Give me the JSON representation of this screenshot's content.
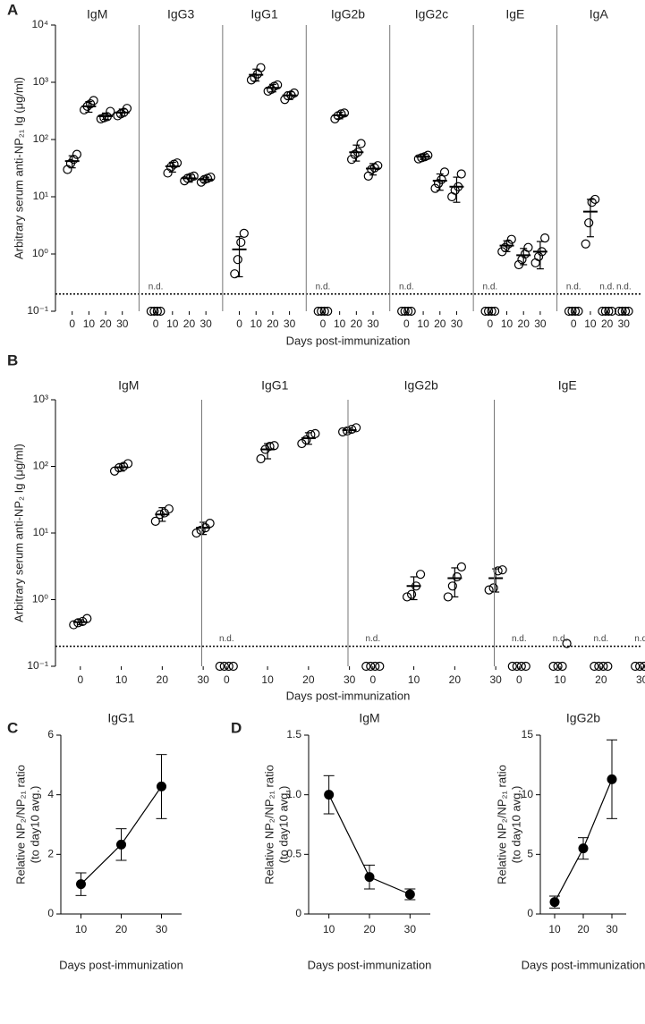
{
  "chart_data": [
    {
      "type": "dot",
      "panel": "A",
      "ylabel": "Arbitrary serum anti-NP₂₁ Ig (μg/ml)",
      "xlabel": "Days post-immunization",
      "log_y": true,
      "ylim": [
        0.1,
        10000
      ],
      "yticks": [
        {
          "value": 0.1,
          "label": "10⁻¹"
        },
        {
          "value": 1,
          "label": "10⁰"
        },
        {
          "value": 10,
          "label": "10¹"
        },
        {
          "value": 100,
          "label": "10²"
        },
        {
          "value": 1000,
          "label": "10³"
        },
        {
          "value": 10000,
          "label": "10⁴"
        }
      ],
      "categories": [
        "0",
        "10",
        "20",
        "30"
      ],
      "detection_limit": 0.2,
      "color": "#000000",
      "groups": [
        {
          "name": "IgM",
          "points": [
            [
              30,
              38,
              45,
              55
            ],
            [
              330,
              380,
              420,
              480
            ],
            [
              230,
              240,
              250,
              310
            ],
            [
              260,
              280,
              300,
              350
            ]
          ],
          "mean": [
            42,
            380,
            255,
            295
          ],
          "lower": [
            32,
            300,
            225,
            255
          ],
          "upper": [
            52,
            460,
            290,
            340
          ],
          "nd": [
            null,
            null,
            null,
            null
          ]
        },
        {
          "name": "IgG3",
          "points": [
            [
              0.1,
              0.1,
              0.1,
              0.1
            ],
            [
              26,
              33,
              37,
              39
            ],
            [
              19,
              21,
              22,
              23
            ],
            [
              18,
              20,
              21,
              22
            ]
          ],
          "mean": [
            null,
            34,
            21,
            20
          ],
          "lower": [
            null,
            27,
            18,
            18
          ],
          "upper": [
            null,
            40,
            24,
            22
          ],
          "nd": [
            "n.d.",
            null,
            null,
            null
          ]
        },
        {
          "name": "IgG1",
          "points": [
            [
              0.45,
              0.8,
              1.6,
              2.3
            ],
            [
              1100,
              1200,
              1400,
              1800
            ],
            [
              700,
              750,
              850,
              900
            ],
            [
              500,
              580,
              600,
              650
            ]
          ],
          "mean": [
            1.2,
            1350,
            800,
            590
          ],
          "lower": [
            0.4,
            1050,
            680,
            500
          ],
          "upper": [
            2.0,
            1700,
            920,
            680
          ],
          "nd": [
            null,
            null,
            null,
            null
          ]
        },
        {
          "name": "IgG2b",
          "points": [
            [
              0.1,
              0.1,
              0.1,
              0.1
            ],
            [
              230,
              260,
              280,
              290
            ],
            [
              45,
              55,
              60,
              85
            ],
            [
              23,
              30,
              32,
              35
            ]
          ],
          "mean": [
            null,
            265,
            60,
            31
          ],
          "lower": [
            null,
            230,
            42,
            24
          ],
          "upper": [
            null,
            300,
            80,
            38
          ],
          "nd": [
            "n.d.",
            null,
            null,
            null
          ]
        },
        {
          "name": "IgG2c",
          "points": [
            [
              0.1,
              0.1,
              0.1,
              0.1
            ],
            [
              46,
              48,
              50,
              53
            ],
            [
              14,
              17,
              20,
              27
            ],
            [
              10,
              13,
              15,
              25
            ]
          ],
          "mean": [
            null,
            50,
            19,
            15
          ],
          "lower": [
            null,
            45,
            13,
            8
          ],
          "upper": [
            null,
            55,
            25,
            22
          ],
          "nd": [
            "n.d.",
            null,
            null,
            null
          ]
        },
        {
          "name": "IgE",
          "points": [
            [
              0.1,
              0.1,
              0.1,
              0.1
            ],
            [
              1.1,
              1.3,
              1.5,
              1.8
            ],
            [
              0.65,
              0.8,
              1.0,
              1.3
            ],
            [
              0.7,
              0.9,
              1.1,
              1.9
            ]
          ],
          "mean": [
            null,
            1.4,
            0.95,
            1.1
          ],
          "lower": [
            null,
            1.1,
            0.65,
            0.55
          ],
          "upper": [
            null,
            1.7,
            1.25,
            1.65
          ],
          "nd": [
            "n.d.",
            null,
            null,
            null
          ]
        },
        {
          "name": "IgA",
          "points": [
            [
              0.1,
              0.1,
              0.1,
              0.1
            ],
            [
              1.5,
              3.5,
              8,
              9
            ],
            [
              0.1,
              0.1,
              0.1,
              0.1
            ],
            [
              0.1,
              0.1,
              0.1,
              0.1
            ]
          ],
          "mean": [
            null,
            5.5,
            null,
            null
          ],
          "lower": [
            null,
            2.0,
            null,
            null
          ],
          "upper": [
            null,
            9.0,
            null,
            null
          ],
          "nd": [
            "n.d.",
            null,
            "n.d.",
            "n.d."
          ]
        }
      ]
    },
    {
      "type": "dot",
      "panel": "B",
      "ylabel": "Arbitrary serum anti-NP₂ Ig (μg/ml)",
      "xlabel": "Days post-immunization",
      "log_y": true,
      "ylim": [
        0.1,
        1000
      ],
      "yticks": [
        {
          "value": 0.1,
          "label": "10⁻¹"
        },
        {
          "value": 1,
          "label": "10⁰"
        },
        {
          "value": 10,
          "label": "10¹"
        },
        {
          "value": 100,
          "label": "10²"
        },
        {
          "value": 1000,
          "label": "10³"
        }
      ],
      "categories": [
        "0",
        "10",
        "20",
        "30"
      ],
      "detection_limit": 0.2,
      "color": "#000000",
      "groups": [
        {
          "name": "IgM",
          "points": [
            [
              0.42,
              0.45,
              0.47,
              0.52
            ],
            [
              85,
              95,
              100,
              110
            ],
            [
              15,
              19,
              20,
              23
            ],
            [
              10,
              11,
              12,
              14
            ]
          ],
          "mean": [
            0.46,
            97,
            19,
            12
          ],
          "lower": [
            0.42,
            85,
            15,
            9.5
          ],
          "upper": [
            0.5,
            110,
            24,
            14.5
          ],
          "nd": [
            null,
            null,
            null,
            null
          ]
        },
        {
          "name": "IgG1",
          "points": [
            [
              0.1,
              0.1,
              0.1,
              0.1
            ],
            [
              130,
              180,
              200,
              205
            ],
            [
              220,
              250,
              300,
              310
            ],
            [
              330,
              340,
              360,
              380
            ]
          ],
          "mean": [
            null,
            180,
            265,
            350
          ],
          "lower": [
            null,
            130,
            215,
            320
          ],
          "upper": [
            null,
            220,
            320,
            380
          ],
          "nd": [
            "n.d.",
            null,
            null,
            null
          ]
        },
        {
          "name": "IgG2b",
          "points": [
            [
              0.1,
              0.1,
              0.1,
              0.1
            ],
            [
              1.1,
              1.2,
              1.6,
              2.4
            ],
            [
              1.1,
              1.6,
              2.2,
              3.1
            ],
            [
              1.4,
              1.5,
              2.7,
              2.8
            ]
          ],
          "mean": [
            null,
            1.6,
            2.1,
            2.1
          ],
          "lower": [
            null,
            1.0,
            1.1,
            1.3
          ],
          "upper": [
            null,
            2.2,
            3.0,
            2.9
          ],
          "nd": [
            "n.d.",
            null,
            null,
            null
          ]
        },
        {
          "name": "IgE",
          "points": [
            [
              0.1,
              0.1,
              0.1,
              0.1
            ],
            [
              0.1,
              0.1,
              0.1,
              0.22
            ],
            [
              0.1,
              0.1,
              0.1,
              0.1
            ],
            [
              0.1,
              0.1,
              0.1,
              0.1
            ]
          ],
          "mean": [
            null,
            null,
            null,
            null
          ],
          "lower": [
            null,
            null,
            null,
            null
          ],
          "upper": [
            null,
            null,
            null,
            null
          ],
          "nd": [
            "n.d.",
            "n.d.",
            "n.d.",
            "n.d."
          ]
        }
      ]
    },
    {
      "type": "line",
      "panel": "C",
      "title": "IgG1",
      "ylabel": [
        "Relative NP₂/NP₂₁ ratio",
        "(to day10 avg.)"
      ],
      "xlabel": "Days post-immunization",
      "x": [
        10,
        20,
        30
      ],
      "xlim": [
        5,
        35
      ],
      "xticks": [
        10,
        20,
        30
      ],
      "ylim": [
        0,
        6
      ],
      "yticks": [
        0,
        2,
        4,
        6
      ],
      "values": [
        1.0,
        2.33,
        4.28
      ],
      "lower": [
        0.62,
        1.8,
        3.2
      ],
      "upper": [
        1.38,
        2.86,
        5.35
      ],
      "color": "#000000"
    },
    {
      "type": "line",
      "panel": "D",
      "title": "IgM",
      "ylabel": [
        "Relative NP₂/NP₂₁ ratio",
        "(to day10 avg.)"
      ],
      "xlabel": "Days post-immunization",
      "x": [
        10,
        20,
        30
      ],
      "xlim": [
        5,
        35
      ],
      "xticks": [
        10,
        20,
        30
      ],
      "ylim": [
        0,
        1.5
      ],
      "yticks": [
        0,
        0.5,
        {
          "value": 1,
          "label": "1.0"
        },
        1.5
      ],
      "values": [
        1.0,
        0.31,
        0.165
      ],
      "lower": [
        0.84,
        0.21,
        0.12
      ],
      "upper": [
        1.16,
        0.41,
        0.21
      ],
      "color": "#000000"
    },
    {
      "type": "line",
      "title": "IgG2b",
      "ylabel": [
        "Relative NP₂/NP₂₁ ratio",
        "(to day10 avg.)"
      ],
      "xlabel": "Days post-immunization",
      "x": [
        10,
        20,
        30
      ],
      "xlim": [
        5,
        35
      ],
      "xticks": [
        10,
        20,
        30
      ],
      "ylim": [
        0,
        15
      ],
      "yticks": [
        0,
        5,
        10,
        15
      ],
      "values": [
        1.0,
        5.5,
        11.3
      ],
      "lower": [
        0.5,
        4.6,
        8.0
      ],
      "upper": [
        1.5,
        6.4,
        14.6
      ],
      "color": "#000000"
    }
  ]
}
